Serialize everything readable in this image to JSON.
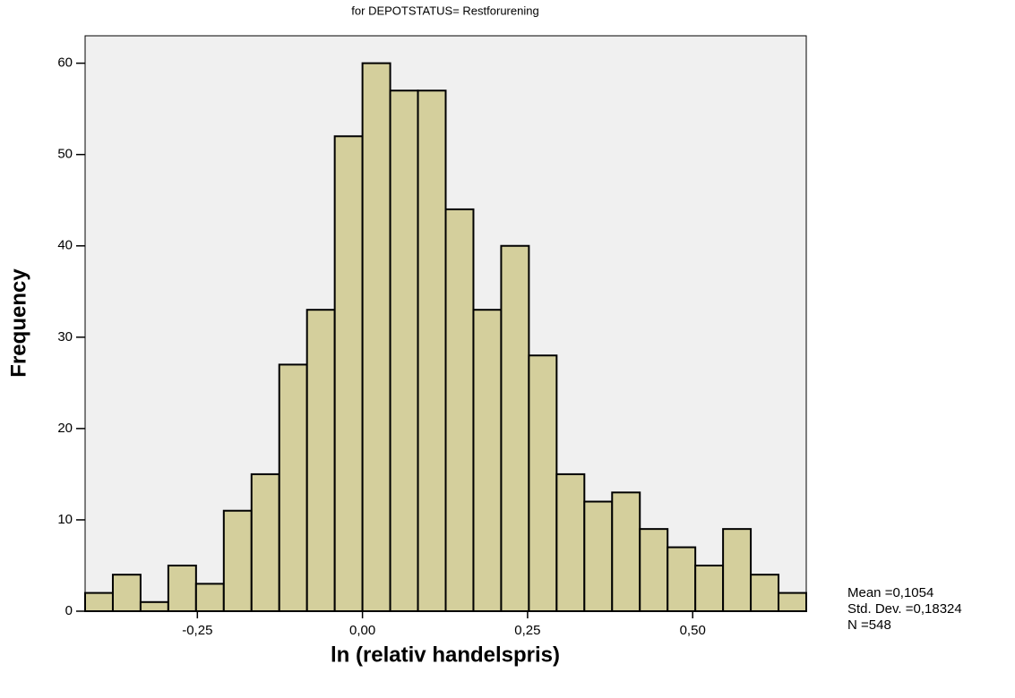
{
  "chart_data": {
    "type": "histogram",
    "title": "for DEPOTSTATUS= Restforurening",
    "xlabel": "ln (relativ handelspris)",
    "ylabel": "Frequency",
    "bins": [
      -0.42,
      -0.378,
      -0.336,
      -0.294,
      -0.252,
      -0.21,
      -0.168,
      -0.126,
      -0.084,
      -0.042,
      0,
      0.042,
      0.084,
      0.126,
      0.168,
      0.21,
      0.252,
      0.294,
      0.336,
      0.378,
      0.42,
      0.462,
      0.504,
      0.546,
      0.588,
      0.63,
      0.672
    ],
    "values": [
      2,
      4,
      1,
      5,
      3,
      11,
      15,
      27,
      33,
      52,
      60,
      57,
      57,
      44,
      33,
      40,
      28,
      15,
      12,
      13,
      9,
      7,
      5,
      9,
      4,
      2
    ],
    "color": "#d4cf9c",
    "xlim": [
      -0.42,
      0.672
    ],
    "xticks": [
      {
        "value": -0.25,
        "label": "-0,25"
      },
      {
        "value": 0,
        "label": "0,00"
      },
      {
        "value": 0.25,
        "label": "0,25"
      },
      {
        "value": 0.5,
        "label": "0,50"
      }
    ],
    "ylim": [
      0,
      63
    ],
    "yticks": [
      0,
      10,
      20,
      30,
      40,
      50,
      60
    ],
    "stats": [
      "Mean =0,1054",
      "Std. Dev. =0,18324",
      "N =548"
    ]
  }
}
